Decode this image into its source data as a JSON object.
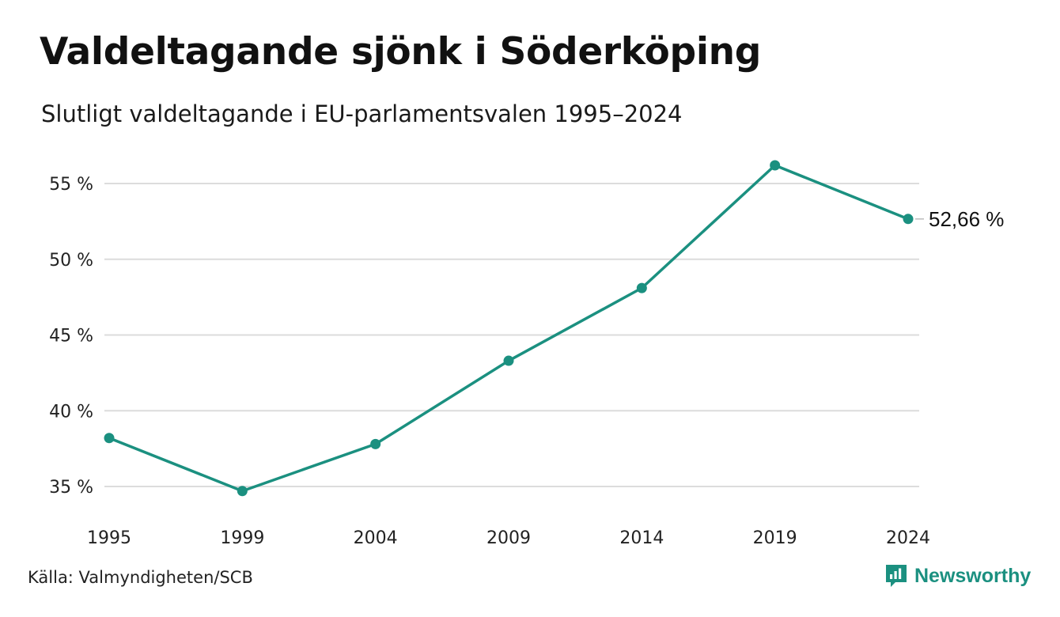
{
  "title": "Valdeltagande sjönk i Söderköping",
  "subtitle": "Slutligt valdeltagande i EU-parlamentsvalen 1995–2024",
  "source": "Källa: Valmyndigheten/SCB",
  "brand": {
    "name": "Newsworthy",
    "icon": "newsworthy-logo-icon"
  },
  "colors": {
    "line": "#1b9080",
    "grid": "#dcdcdc",
    "text": "#111111",
    "brand": "#1b9080"
  },
  "chart_data": {
    "type": "line",
    "x": [
      "1995",
      "1999",
      "2004",
      "2009",
      "2014",
      "2019",
      "2024"
    ],
    "series": [
      {
        "values": [
          38.2,
          34.7,
          37.8,
          43.3,
          48.1,
          56.2,
          52.66
        ]
      }
    ],
    "ylim": [
      33,
      57
    ],
    "yticks": [
      35,
      40,
      45,
      50,
      55
    ],
    "ytick_labels": [
      "35 %",
      "40 %",
      "45 %",
      "50 %",
      "55 %"
    ],
    "end_label": "52,66 %",
    "grid": "horizontal",
    "legend": "none"
  }
}
